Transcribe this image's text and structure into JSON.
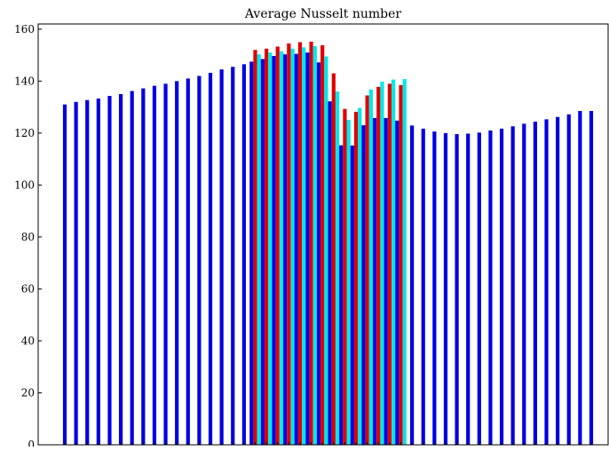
{
  "chart_data": {
    "type": "bar",
    "title": "Average Nusselt number",
    "xlabel": "",
    "ylabel": "",
    "ylim": [
      0,
      162
    ],
    "yticks": [
      0,
      20,
      40,
      60,
      80,
      100,
      120,
      140,
      160
    ],
    "grid": false,
    "legend": "none",
    "series": [
      {
        "color": "#0000e0",
        "values": [
          131,
          132,
          132.7,
          133.3,
          134.3,
          135,
          136.2,
          137.2,
          138.2,
          139,
          140,
          141,
          142,
          143.2,
          144.5,
          145.5,
          146.5,
          147.5,
          148.5,
          149.7,
          150.3,
          150.5,
          151,
          147.2,
          132.2,
          115.3,
          115.2,
          123,
          125.8,
          125.8,
          124.8,
          122.9,
          121.7,
          120.6,
          120,
          119.6,
          119.8,
          120.2,
          121,
          121.7,
          122.6,
          123.6,
          124.4,
          125.3,
          126.2,
          127.2,
          128.5,
          128.5
        ]
      },
      {
        "color": "#e00000",
        "values": [
          null,
          null,
          null,
          null,
          null,
          null,
          null,
          null,
          null,
          null,
          null,
          null,
          null,
          null,
          null,
          null,
          null,
          152,
          152.5,
          153.3,
          154.5,
          155,
          155.2,
          153.8,
          143,
          129.3,
          128.2,
          134.5,
          137.8,
          139,
          138.5,
          null,
          null,
          null,
          null,
          null,
          null,
          null,
          null,
          null,
          null,
          null,
          null,
          null,
          null,
          null,
          null,
          null
        ]
      },
      {
        "color": "#00e8e8",
        "values": [
          null,
          null,
          null,
          null,
          null,
          null,
          null,
          null,
          null,
          null,
          null,
          null,
          null,
          null,
          null,
          null,
          null,
          150.3,
          151,
          151.5,
          152.5,
          153,
          153.5,
          149.5,
          136,
          125.1,
          129.7,
          136.8,
          139.8,
          140.6,
          140.8,
          null,
          null,
          null,
          null,
          null,
          null,
          null,
          null,
          null,
          null,
          null,
          null,
          null,
          null,
          null,
          null,
          null
        ]
      }
    ]
  }
}
